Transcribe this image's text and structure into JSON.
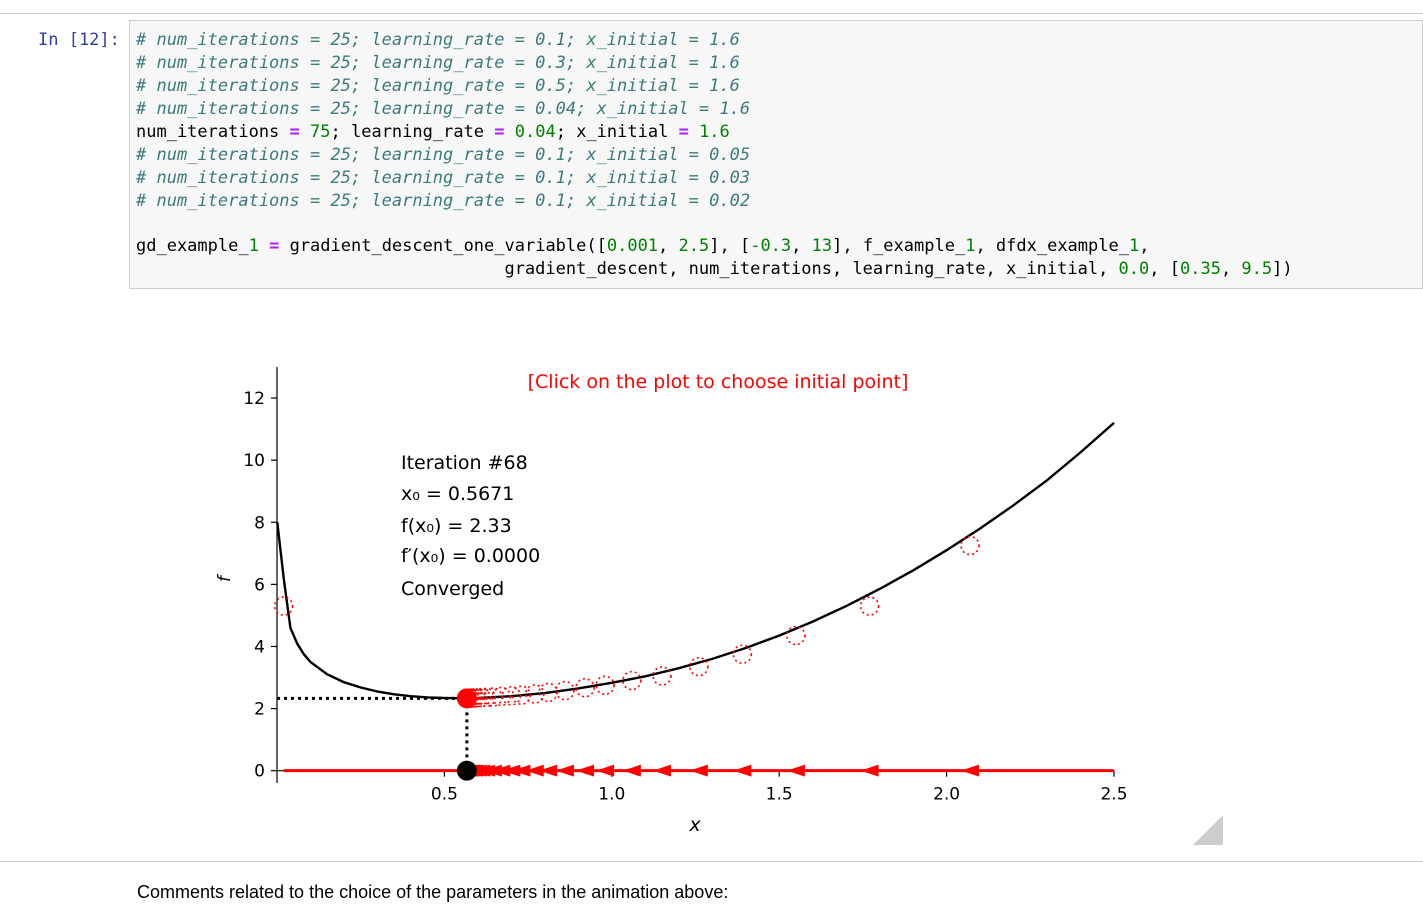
{
  "cell": {
    "prompt": "In [12]:",
    "lines": [
      {
        "type": "comment",
        "text": "# num_iterations = 25; learning_rate = 0.1; x_initial = 1.6"
      },
      {
        "type": "comment",
        "text": "# num_iterations = 25; learning_rate = 0.3; x_initial = 1.6"
      },
      {
        "type": "comment",
        "text": "# num_iterations = 25; learning_rate = 0.5; x_initial = 1.6"
      },
      {
        "type": "comment",
        "text": "# num_iterations = 25; learning_rate = 0.04; x_initial = 1.6"
      },
      {
        "type": "code",
        "text": "num_iterations = 75; learning_rate = 0.04; x_initial = 1.6"
      },
      {
        "type": "comment",
        "text": "# num_iterations = 25; learning_rate = 0.1; x_initial = 0.05"
      },
      {
        "type": "comment",
        "text": "# num_iterations = 25; learning_rate = 0.1; x_initial = 0.03"
      },
      {
        "type": "comment",
        "text": "# num_iterations = 25; learning_rate = 0.1; x_initial = 0.02"
      },
      {
        "type": "blank",
        "text": ""
      },
      {
        "type": "code",
        "text": "gd_example_1 = gradient_descent_one_variable([0.001, 2.5], [-0.3, 13], f_example_1, dfdx_example_1,"
      },
      {
        "type": "code",
        "text": "                                    gradient_descent, num_iterations, learning_rate, x_initial, 0.0, [0.35, 9.5])"
      }
    ]
  },
  "chart_data": {
    "type": "line",
    "title": "",
    "instruction": "[Click on the plot to choose initial point]",
    "xlabel": "x",
    "ylabel": "f",
    "xlim": [
      0.0,
      2.5
    ],
    "ylim": [
      -0.3,
      13
    ],
    "xticks": [
      "0.5",
      "1.0",
      "1.5",
      "2.0",
      "2.5"
    ],
    "yticks": [
      "0",
      "2",
      "4",
      "6",
      "8",
      "10",
      "12"
    ],
    "grid": false,
    "function_curve": {
      "x": [
        0.001,
        0.02,
        0.04,
        0.06,
        0.08,
        0.1,
        0.15,
        0.2,
        0.25,
        0.3,
        0.35,
        0.4,
        0.45,
        0.5,
        0.5671,
        0.6,
        0.7,
        0.8,
        0.9,
        1.0,
        1.1,
        1.2,
        1.3,
        1.4,
        1.5,
        1.6,
        1.7,
        1.8,
        1.9,
        2.0,
        2.1,
        2.2,
        2.3,
        2.4,
        2.5
      ],
      "y": [
        8.0,
        6.2,
        4.6,
        4.1,
        3.75,
        3.5,
        3.1,
        2.85,
        2.68,
        2.55,
        2.46,
        2.4,
        2.36,
        2.34,
        2.33,
        2.34,
        2.4,
        2.5,
        2.65,
        2.83,
        3.04,
        3.3,
        3.6,
        3.95,
        4.35,
        4.8,
        5.3,
        5.85,
        6.45,
        7.1,
        7.8,
        8.55,
        9.35,
        10.25,
        11.2
      ]
    },
    "iterates": {
      "x": [
        0.02,
        2.07,
        1.77,
        1.55,
        1.39,
        1.26,
        1.15,
        1.06,
        0.98,
        0.92,
        0.86,
        0.81,
        0.77,
        0.73,
        0.7,
        0.67,
        0.645,
        0.625,
        0.61,
        0.6,
        0.59,
        0.585,
        0.58,
        0.575,
        0.572,
        0.57,
        0.5685
      ],
      "y": [
        5.3,
        7.25,
        5.3,
        4.35,
        3.75,
        3.35,
        3.05,
        2.9,
        2.75,
        2.67,
        2.58,
        2.52,
        2.47,
        2.43,
        2.41,
        2.39,
        2.37,
        2.36,
        2.35,
        2.345,
        2.34,
        2.338,
        2.335,
        2.333,
        2.332,
        2.331,
        2.33
      ]
    },
    "current_point": {
      "x": 0.5671,
      "y": 2.33
    },
    "info": {
      "iteration": "Iteration #68",
      "x0": "x₀ = 0.5671",
      "fx0": "f(x₀) = 2.33",
      "dfx0": "f′(x₀) = 0.0000",
      "status": "Converged"
    },
    "colors": {
      "curve": "#000000",
      "iterates": "#ff0000",
      "current": "#000000",
      "instruction": "#ff0000"
    }
  },
  "comment": "Comments related to the choice of the parameters in the animation above:"
}
